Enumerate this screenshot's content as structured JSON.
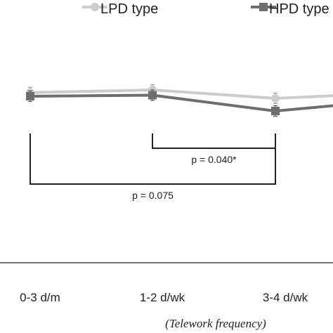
{
  "chart_data": {
    "type": "line",
    "categories": [
      "0-3 d/m",
      "1-2 d/wk",
      "3-4 d/wk"
    ],
    "series": [
      {
        "name": "LPD type",
        "values": [
          3.05,
          3.1,
          2.94
        ],
        "errors": [
          0.1,
          0.1,
          0.1
        ],
        "color": "#cccccc"
      },
      {
        "name": "HPD type",
        "values": [
          2.98,
          3.0,
          2.7
        ],
        "errors": [
          0.1,
          0.1,
          0.1
        ],
        "color": "#6e6e6e"
      }
    ],
    "xlabel": "(Telework frequency)",
    "ylabel": "",
    "title": "",
    "annotations": [
      {
        "text": "p = 0.040*",
        "from": "1-2 d/wk",
        "to": "3-4 d/wk"
      },
      {
        "text": "p = 0.075",
        "from": "0-3 d/m",
        "to": "3-4 d/wk"
      }
    ],
    "legend_position": "top"
  }
}
